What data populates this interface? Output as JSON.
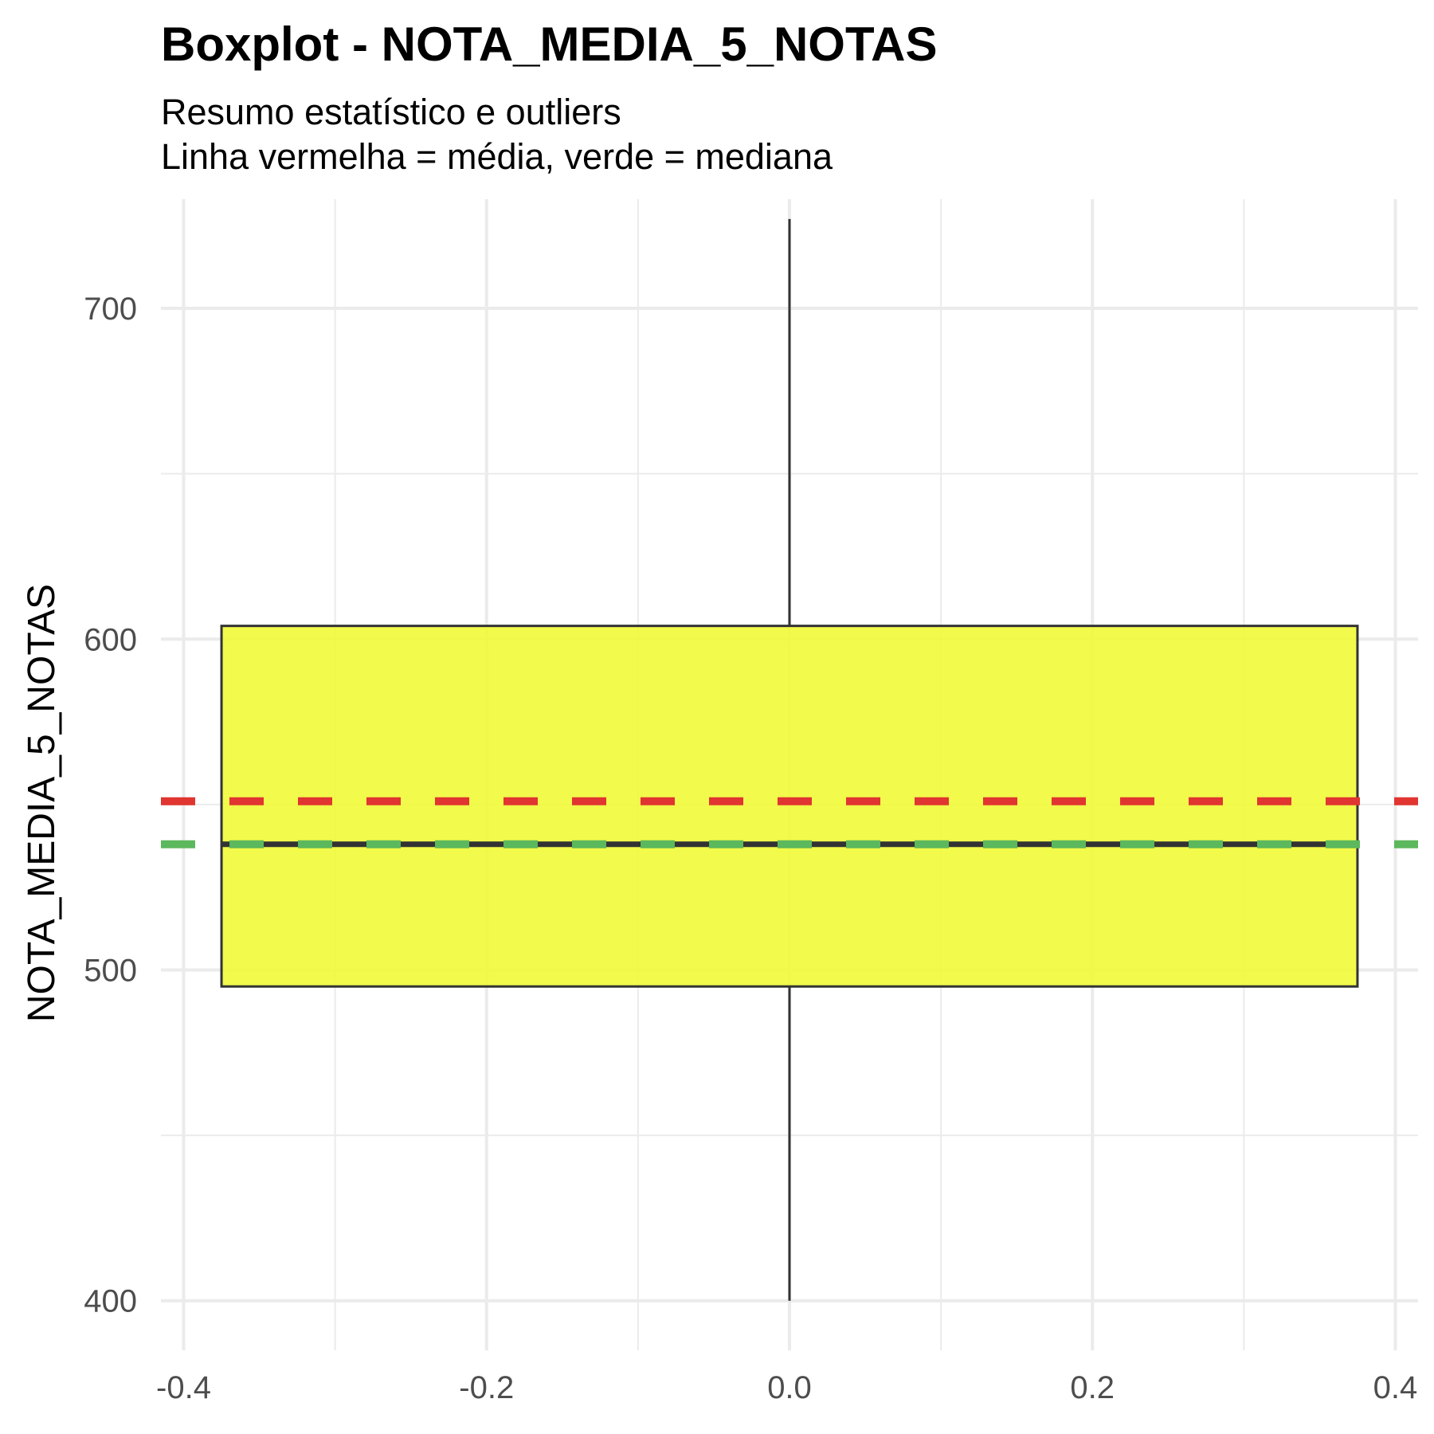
{
  "chart_data": {
    "type": "boxplot",
    "title": "Boxplot - NOTA_MEDIA_5_NOTAS",
    "subtitle_lines": [
      "Resumo estatístico e outliers",
      "Linha vermelha = média, verde = mediana"
    ],
    "xlabel": "",
    "ylabel": "NOTA_MEDIA_5_NOTAS",
    "xlim": [
      -0.415,
      0.415
    ],
    "ylim": [
      385,
      733
    ],
    "x_ticks": [
      -0.4,
      -0.2,
      0.0,
      0.2,
      0.4
    ],
    "x_tick_labels": [
      "-0.4",
      "-0.2",
      "0.0",
      "0.2",
      "0.4"
    ],
    "y_ticks": [
      400,
      500,
      600,
      700
    ],
    "y_tick_labels": [
      "400",
      "500",
      "600",
      "700"
    ],
    "grid": true,
    "box": {
      "x_center": 0.0,
      "x_left": -0.375,
      "x_right": 0.375,
      "min": 400,
      "q1": 495,
      "median": 538,
      "q3": 604,
      "max": 727,
      "fill": "#f0f932",
      "outline": "#333333"
    },
    "reference_lines": [
      {
        "kind": "mean",
        "value": 551,
        "color": "#e03530",
        "style": "dashed"
      },
      {
        "kind": "median",
        "value": 538,
        "color": "#5cb85c",
        "style": "dashed"
      }
    ]
  }
}
